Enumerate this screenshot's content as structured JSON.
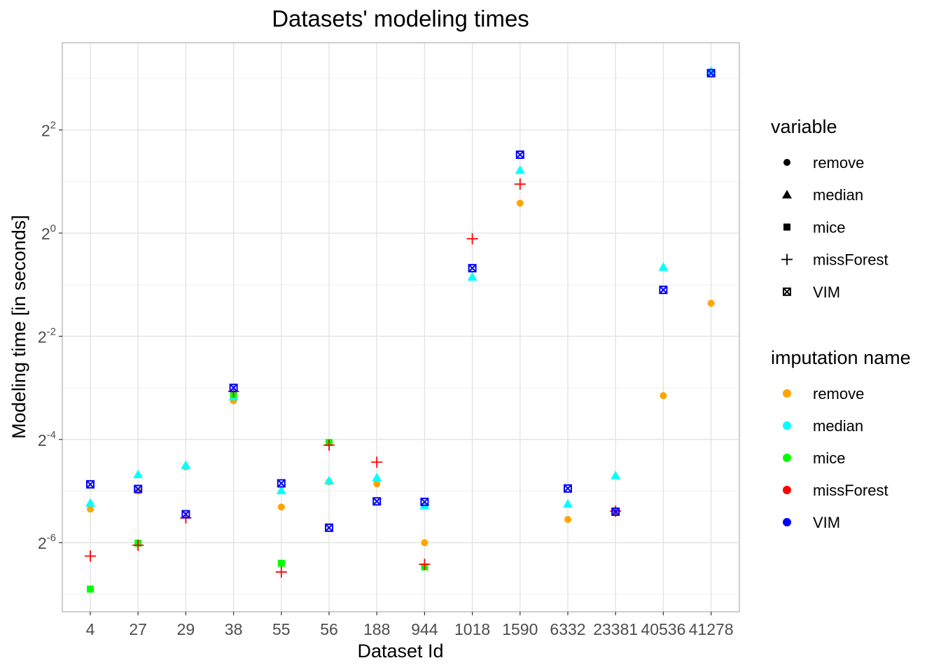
{
  "chart_data": {
    "type": "scatter",
    "title": "Datasets' modeling times",
    "xlabel": "Dataset Id",
    "ylabel": "Modeling time [in seconds]",
    "y_scale": "log2",
    "y_tick_base": "2",
    "y_tick_exponents": [
      "-6",
      "-4",
      "-2",
      "0",
      "2"
    ],
    "x_categories": [
      "4",
      "27",
      "29",
      "38",
      "55",
      "56",
      "188",
      "944",
      "1018",
      "1590",
      "6332",
      "23381",
      "40536",
      "41278"
    ],
    "grid": true,
    "legend_position": "right",
    "colors": {
      "remove": "#FFA500",
      "median": "#00FFFF",
      "mice": "#00FF00",
      "missForest": "#FF0000",
      "VIM": "#0000FF"
    },
    "legend_shape_title": "variable",
    "legend_shape_items": [
      {
        "label": "remove",
        "shape": "circle"
      },
      {
        "label": "median",
        "shape": "triangle"
      },
      {
        "label": "mice",
        "shape": "square"
      },
      {
        "label": "missForest",
        "shape": "plus"
      },
      {
        "label": "VIM",
        "shape": "boxcross"
      }
    ],
    "legend_color_title": "imputation name",
    "legend_color_items": [
      "remove",
      "median",
      "mice",
      "missForest",
      "VIM"
    ],
    "series": [
      {
        "name": "remove",
        "shape": "circle",
        "x": [
          "4",
          "27",
          "29",
          "38",
          "55",
          "56",
          "188",
          "944",
          "1590",
          "6332",
          "23381",
          "40536",
          "41278"
        ],
        "log2_y": [
          -5.35,
          -5.0,
          -4.53,
          -3.25,
          -5.31,
          -4.82,
          -4.86,
          -6.0,
          0.58,
          -5.55,
          -5.42,
          -3.15,
          -1.36
        ]
      },
      {
        "name": "median",
        "shape": "triangle",
        "x": [
          "4",
          "27",
          "29",
          "38",
          "55",
          "56",
          "188",
          "944",
          "1018",
          "1590",
          "6332",
          "23381",
          "40536",
          "41278"
        ],
        "log2_y": [
          -5.23,
          -4.68,
          -4.5,
          -3.17,
          -4.99,
          -4.8,
          -4.74,
          -5.28,
          -0.85,
          1.22,
          -5.25,
          -4.7,
          -0.66,
          3.14
        ]
      },
      {
        "name": "mice",
        "shape": "square",
        "x": [
          "4",
          "27",
          "38",
          "55",
          "56",
          "944"
        ],
        "log2_y": [
          -6.9,
          -6.01,
          -3.13,
          -6.4,
          -4.06,
          -6.47
        ]
      },
      {
        "name": "missForest",
        "shape": "plus",
        "x": [
          "4",
          "27",
          "29",
          "38",
          "55",
          "56",
          "188",
          "944",
          "1018",
          "1590",
          "23381"
        ],
        "log2_y": [
          -6.26,
          -6.05,
          -5.52,
          -3.07,
          -6.57,
          -4.11,
          -4.44,
          -6.42,
          -0.11,
          0.95,
          -5.39
        ]
      },
      {
        "name": "VIM",
        "shape": "boxcross",
        "x": [
          "4",
          "27",
          "29",
          "38",
          "55",
          "56",
          "188",
          "944",
          "1018",
          "1590",
          "6332",
          "23381",
          "40536",
          "41278"
        ],
        "log2_y": [
          -4.87,
          -4.96,
          -5.45,
          -3.0,
          -4.85,
          -5.71,
          -5.2,
          -5.21,
          -0.68,
          1.52,
          -4.95,
          -5.4,
          -1.1,
          3.1
        ]
      }
    ]
  }
}
